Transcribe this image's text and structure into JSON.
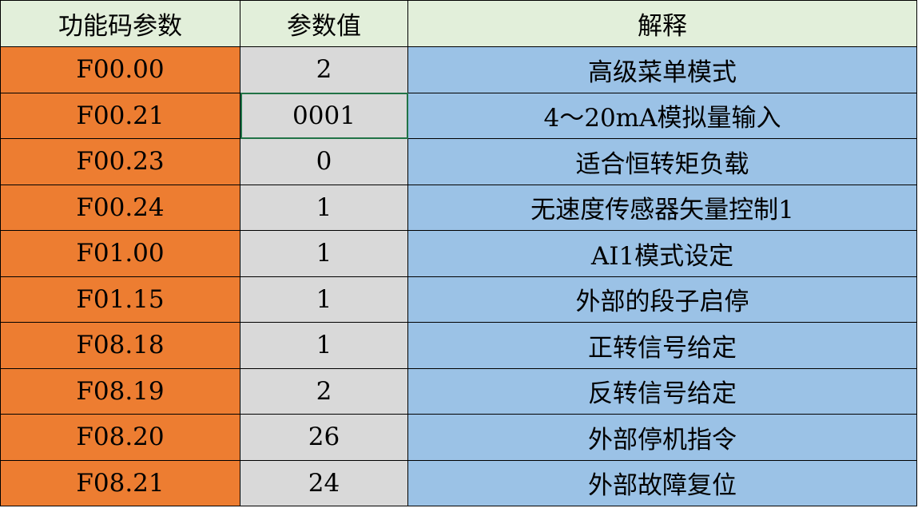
{
  "headers": [
    "功能码参数",
    "参数值",
    "解释"
  ],
  "selected_cell": {
    "row": 1,
    "column": 1
  },
  "colors": {
    "header": "#E2EFDA",
    "code_column": "#ED7D31",
    "value_column": "#D9D9D9",
    "description_column": "#9BC2E6",
    "selection": "#217346"
  },
  "rows": [
    {
      "code": "F00.00",
      "value": "2",
      "desc": "高级菜单模式"
    },
    {
      "code": "F00.21",
      "value": "0001",
      "desc": "4～20mA模拟量输入"
    },
    {
      "code": "F00.23",
      "value": "0",
      "desc": "适合恒转矩负载"
    },
    {
      "code": "F00.24",
      "value": "1",
      "desc": "无速度传感器矢量控制1"
    },
    {
      "code": "F01.00",
      "value": "1",
      "desc": "AI1模式设定"
    },
    {
      "code": "F01.15",
      "value": "1",
      "desc": "外部的段子启停"
    },
    {
      "code": "F08.18",
      "value": "1",
      "desc": "正转信号给定"
    },
    {
      "code": "F08.19",
      "value": "2",
      "desc": "反转信号给定"
    },
    {
      "code": "F08.20",
      "value": "26",
      "desc": "外部停机指令"
    },
    {
      "code": "F08.21",
      "value": "24",
      "desc": "外部故障复位"
    }
  ]
}
